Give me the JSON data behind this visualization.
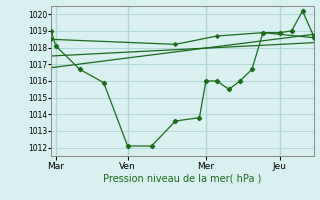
{
  "xlabel": "Pression niveau de la mer( hPa )",
  "ylim": [
    1011.5,
    1020.5
  ],
  "yticks": [
    1012,
    1013,
    1014,
    1015,
    1016,
    1017,
    1018,
    1019,
    1020
  ],
  "bg_color": "#d8f0f0",
  "line_color": "#1a6b1a",
  "grid_color": "#b0d8d8",
  "xtick_labels": [
    "Mar",
    "Ven",
    "Mer",
    "Jeu"
  ],
  "xtick_positions": [
    0,
    78,
    163,
    243
  ],
  "xlim": [
    -5,
    280
  ],
  "series1_x": [
    -5,
    0,
    26,
    52,
    78,
    104,
    130,
    156,
    163,
    175,
    188,
    200,
    213,
    225,
    243,
    256,
    268,
    280
  ],
  "series1_y": [
    1019.0,
    1018.1,
    1016.7,
    1015.9,
    1012.1,
    1012.1,
    1013.6,
    1013.8,
    1016.0,
    1016.0,
    1015.5,
    1016.0,
    1016.7,
    1018.9,
    1018.9,
    1019.0,
    1020.2,
    1018.7
  ],
  "series2_x": [
    -5,
    280
  ],
  "series2_y": [
    1017.5,
    1018.3
  ],
  "series3_x": [
    -5,
    280
  ],
  "series3_y": [
    1016.8,
    1018.8
  ],
  "series4_x": [
    -5,
    130,
    175,
    225,
    280
  ],
  "series4_y": [
    1018.5,
    1018.2,
    1018.7,
    1018.9,
    1018.6
  ],
  "vline_positions": [
    0,
    78,
    163,
    243
  ]
}
